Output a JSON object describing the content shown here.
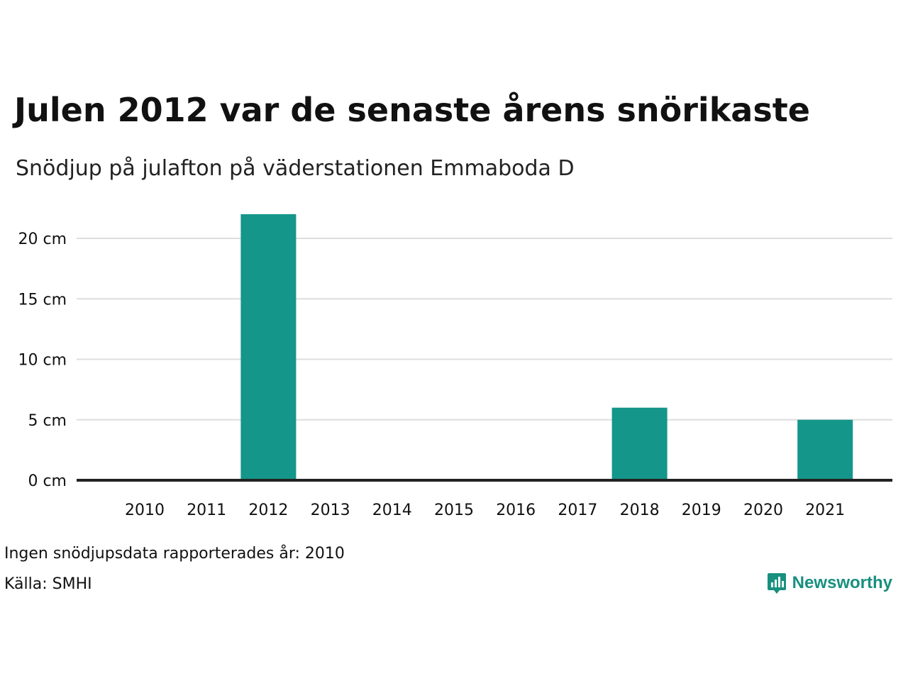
{
  "header": {
    "title": "Julen 2012 var de senaste årens snörikaste",
    "subtitle": "Snödjup på julafton på väderstationen Emmaboda D"
  },
  "footer": {
    "note": "Ingen snödjupsdata rapporterades år: 2010",
    "source": "Källa: SMHI",
    "brand": "Newsworthy",
    "brand_icon": "bar-chart-speech-bubble-icon"
  },
  "colors": {
    "bar": "#14968a",
    "grid": "#dddddd",
    "baseline": "#222222",
    "brand": "#18907f"
  },
  "chart_data": {
    "type": "bar",
    "categories": [
      "2010",
      "2011",
      "2012",
      "2013",
      "2014",
      "2015",
      "2016",
      "2017",
      "2018",
      "2019",
      "2020",
      "2021"
    ],
    "values": [
      null,
      0,
      22,
      0,
      0,
      0,
      0,
      0,
      6,
      0,
      0,
      5
    ],
    "ylim": [
      0,
      22
    ],
    "yticks": [
      0,
      5,
      10,
      15,
      20
    ],
    "ytick_labels": [
      "0 cm",
      "5 cm",
      "10 cm",
      "15 cm",
      "20 cm"
    ],
    "grid": true,
    "legend": "none"
  }
}
